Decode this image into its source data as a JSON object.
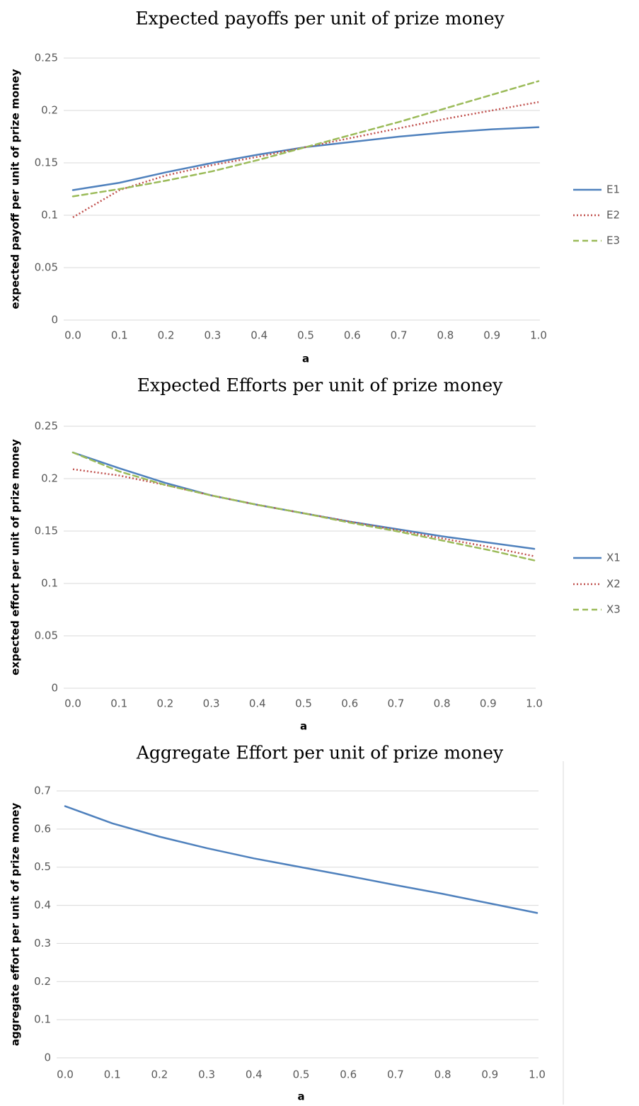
{
  "chart_data": [
    {
      "type": "line",
      "title": "Expected payoffs per unit of prize money",
      "xlabel": "a",
      "ylabel": "expected payoff per unit of prize money",
      "x": [
        0,
        0.1,
        0.2,
        0.3,
        0.4,
        0.5,
        0.6,
        0.7,
        0.8,
        0.9,
        1
      ],
      "series": [
        {
          "name": "E1",
          "color": "#4f81bd",
          "style": "solid",
          "values": [
            0.124,
            0.131,
            0.141,
            0.15,
            0.158,
            0.165,
            0.17,
            0.175,
            0.179,
            0.182,
            0.184
          ]
        },
        {
          "name": "E2",
          "color": "#c0504d",
          "style": "dotted",
          "values": [
            0.098,
            0.124,
            0.138,
            0.148,
            0.156,
            0.165,
            0.174,
            0.183,
            0.192,
            0.2,
            0.208
          ]
        },
        {
          "name": "E3",
          "color": "#9bbb59",
          "style": "dashed",
          "values": [
            0.118,
            0.125,
            0.133,
            0.142,
            0.153,
            0.165,
            0.177,
            0.189,
            0.202,
            0.215,
            0.228
          ]
        }
      ],
      "xlim": [
        0,
        1
      ],
      "xticks": [
        {
          "value": 0,
          "label": "0.0"
        },
        0.1,
        0.2,
        0.3,
        0.4,
        0.5,
        0.6,
        0.7,
        0.8,
        0.9,
        {
          "value": 1,
          "label": "1.0"
        }
      ],
      "ylim": [
        0,
        0.25
      ],
      "yticks": [
        0,
        0.05,
        0.1,
        0.15,
        0.2,
        0.25
      ],
      "grid": true,
      "legend": "right"
    },
    {
      "type": "line",
      "title": "Expected Efforts per unit of prize money",
      "xlabel": "a",
      "ylabel": "expected effort per unit of prize money",
      "x": [
        0,
        0.1,
        0.2,
        0.3,
        0.4,
        0.5,
        0.6,
        0.7,
        0.8,
        0.9,
        1
      ],
      "series": [
        {
          "name": "X1",
          "color": "#4f81bd",
          "style": "solid",
          "values": [
            0.225,
            0.21,
            0.196,
            0.184,
            0.175,
            0.167,
            0.159,
            0.152,
            0.145,
            0.139,
            0.133
          ]
        },
        {
          "name": "X2",
          "color": "#c0504d",
          "style": "dotted",
          "values": [
            0.209,
            0.203,
            0.194,
            0.184,
            0.175,
            0.167,
            0.159,
            0.151,
            0.143,
            0.135,
            0.126
          ]
        },
        {
          "name": "X3",
          "color": "#9bbb59",
          "style": "dashed",
          "values": [
            0.225,
            0.207,
            0.194,
            0.184,
            0.175,
            0.167,
            0.158,
            0.15,
            0.141,
            0.132,
            0.122
          ]
        }
      ],
      "xlim": [
        0,
        1
      ],
      "xticks": [
        {
          "value": 0,
          "label": "0.0"
        },
        0.1,
        0.2,
        0.3,
        0.4,
        0.5,
        0.6,
        0.7,
        0.8,
        0.9,
        {
          "value": 1,
          "label": "1.0"
        }
      ],
      "ylim": [
        0,
        0.25
      ],
      "yticks": [
        0,
        0.05,
        0.1,
        0.15,
        0.2,
        0.25
      ],
      "grid": true,
      "legend": "right"
    },
    {
      "type": "line",
      "title": "Aggregate Effort per unit of prize money",
      "xlabel": "a",
      "ylabel": "aggregate effort per unit of prize money",
      "x": [
        0,
        0.1,
        0.2,
        0.3,
        0.4,
        0.5,
        0.6,
        0.7,
        0.8,
        0.9,
        1
      ],
      "series": [
        {
          "color": "#4f81bd",
          "style": "solid",
          "values": [
            0.66,
            0.615,
            0.58,
            0.55,
            0.523,
            0.5,
            0.477,
            0.453,
            0.43,
            0.405,
            0.38
          ]
        }
      ],
      "xlim": [
        0,
        1
      ],
      "xticks": [
        {
          "value": 0,
          "label": "0.0"
        },
        0.1,
        0.2,
        0.3,
        0.4,
        0.5,
        0.6,
        0.7,
        0.8,
        0.9,
        {
          "value": 1,
          "label": "1.0"
        }
      ],
      "ylim": [
        0,
        0.7
      ],
      "yticks": [
        0,
        0.1,
        0.2,
        0.3,
        0.4,
        0.5,
        0.6,
        0.7
      ],
      "grid": true
    }
  ]
}
